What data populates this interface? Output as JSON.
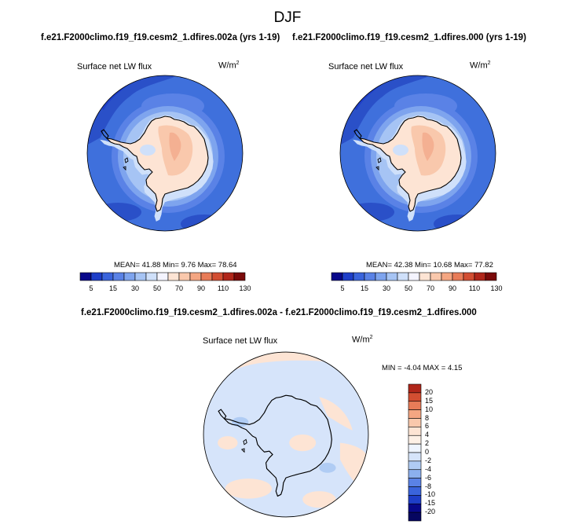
{
  "season": "DJF",
  "panels": [
    {
      "title": "f.e21.F2000climo.f19_f19.cesm2_1.dfires.002a (yrs 1-19)",
      "field": "Surface net LW flux",
      "units": "W/m",
      "units_exp": "2",
      "stats": "MEAN= 41.88  Min=  9.76  Max= 78.64"
    },
    {
      "title": "f.e21.F2000climo.f19_f19.cesm2_1.dfires.000 (yrs 1-19)",
      "field": "Surface net LW flux",
      "units": "W/m",
      "units_exp": "2",
      "stats": "MEAN= 42.38  Min= 10.68  Max= 77.82"
    }
  ],
  "diff": {
    "title": "f.e21.F2000climo.f19_f19.cesm2_1.dfires.002a - f.e21.F2000climo.f19_f19.cesm2_1.dfires.000",
    "field": "Surface net LW flux",
    "units": "W/m",
    "units_exp": "2",
    "stats": "MIN = -4.04 MAX =  4.15"
  },
  "chart_data": [
    {
      "type": "heatmap",
      "projection": "south polar stereographic",
      "title": "Surface net LW flux",
      "units": "W/m2",
      "colorbar": {
        "orientation": "horizontal",
        "tick_labels": [
          "5",
          "15",
          "30",
          "50",
          "70",
          "90",
          "110",
          "130"
        ],
        "colors": [
          "#08088a",
          "#1e3ec8",
          "#3a64dc",
          "#5a82e6",
          "#7ea4ee",
          "#a6c4f4",
          "#cfe0fa",
          "#f4f4ff",
          "#fde4d4",
          "#f9c8ac",
          "#f4a682",
          "#e87c58",
          "#d24e32",
          "#b0261a",
          "#7a0a0a"
        ]
      },
      "summary": {
        "mean": 41.88,
        "min": 9.76,
        "max": 78.64
      }
    },
    {
      "type": "heatmap",
      "projection": "south polar stereographic",
      "title": "Surface net LW flux",
      "units": "W/m2",
      "colorbar": {
        "orientation": "horizontal",
        "tick_labels": [
          "5",
          "15",
          "30",
          "50",
          "70",
          "90",
          "110",
          "130"
        ]
      },
      "summary": {
        "mean": 42.38,
        "min": 10.68,
        "max": 77.82
      }
    },
    {
      "type": "heatmap",
      "projection": "south polar stereographic",
      "title": "Surface net LW flux",
      "units": "W/m2",
      "colorbar": {
        "orientation": "vertical",
        "tick_labels": [
          "20",
          "15",
          "10",
          "8",
          "6",
          "4",
          "2",
          "0",
          "-2",
          "-4",
          "-6",
          "-8",
          "-10",
          "-15",
          "-20"
        ],
        "colors": [
          "#b0261a",
          "#d24e32",
          "#e87c58",
          "#f4a682",
          "#f9c8ac",
          "#fde4d4",
          "#fdf0e6",
          "#eef4ff",
          "#d6e4fa",
          "#b0ccf4",
          "#8cb0ee",
          "#5a82e6",
          "#3a64dc",
          "#1e3ec8",
          "#08088a",
          "#060660"
        ]
      },
      "summary": {
        "min": -4.04,
        "max": 4.15
      }
    }
  ]
}
